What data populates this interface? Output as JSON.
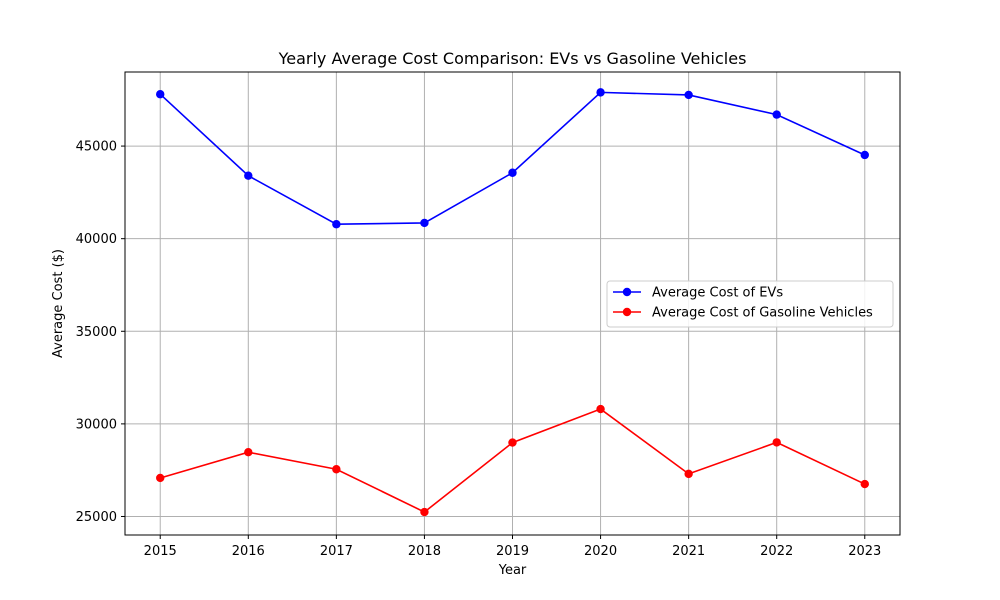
{
  "chart_data": {
    "type": "line",
    "title": "Yearly Average Cost Comparison: EVs vs Gasoline Vehicles",
    "xlabel": "Year",
    "ylabel": "Average Cost ($)",
    "x": [
      2015,
      2016,
      2017,
      2018,
      2019,
      2020,
      2021,
      2022,
      2023
    ],
    "xlim": [
      2014.6,
      2023.4
    ],
    "ylim": [
      24000,
      49000
    ],
    "yticks": [
      25000,
      30000,
      35000,
      40000,
      45000
    ],
    "grid": true,
    "legend_position": "center-right",
    "series": [
      {
        "name": "Average Cost of EVs",
        "color": "#0000ff",
        "marker": "circle",
        "values": [
          47800,
          43400,
          40780,
          40850,
          43560,
          47900,
          47760,
          46700,
          44520
        ]
      },
      {
        "name": "Average Cost of Gasoline Vehicles",
        "color": "#ff0000",
        "marker": "circle",
        "values": [
          27080,
          28470,
          27550,
          25240,
          28990,
          30800,
          27300,
          29000,
          26750
        ]
      }
    ]
  }
}
